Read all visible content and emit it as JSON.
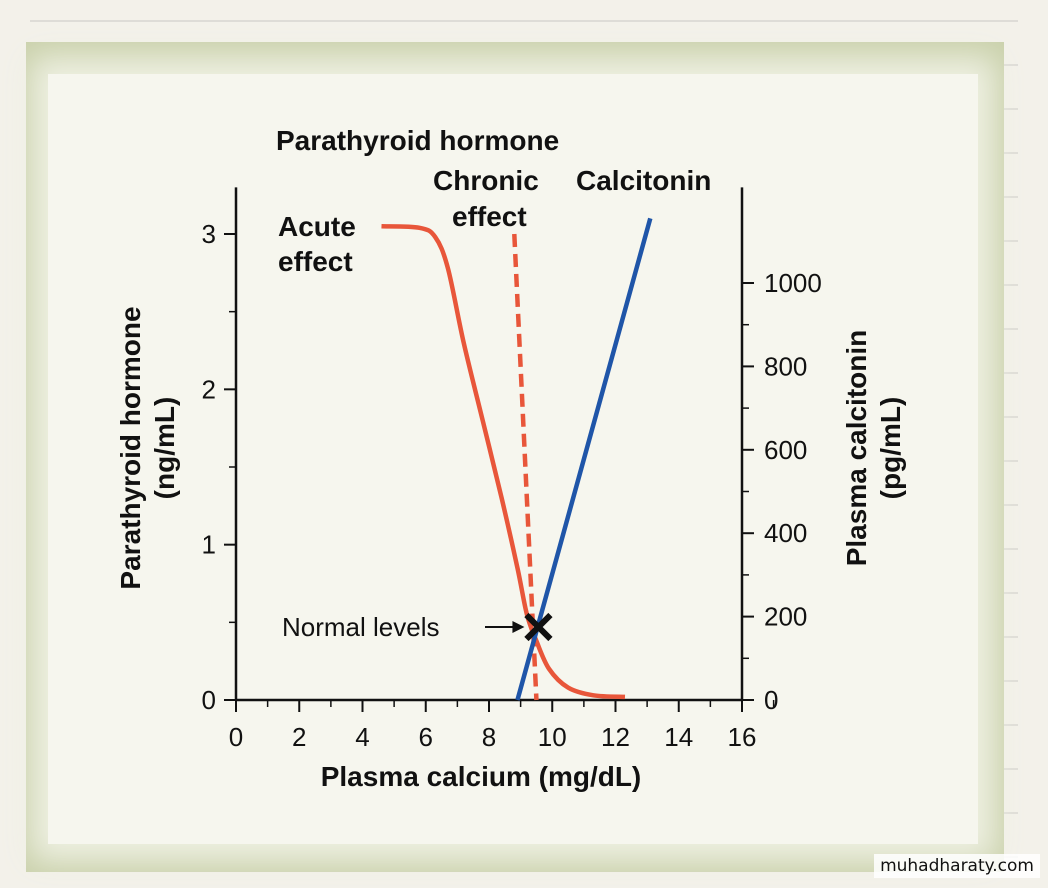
{
  "chart_data": {
    "type": "line",
    "title": "Parathyroid hormone",
    "xlabel": "Plasma calcium (mg/dL)",
    "ylabel_left": [
      "Parathyroid hormone",
      "(ng/mL)"
    ],
    "ylabel_right": [
      "Plasma calcitonin",
      "(pg/mL)"
    ],
    "xlim": [
      0,
      16
    ],
    "ylim_left": [
      0,
      3.3
    ],
    "ylim_right": [
      0,
      1190
    ],
    "x_ticks": [
      0,
      2,
      4,
      6,
      8,
      10,
      12,
      14,
      16
    ],
    "y_left_ticks": [
      0,
      1,
      2,
      3
    ],
    "y_right_ticks": [
      0,
      200,
      400,
      600,
      800,
      1000
    ],
    "grid": false,
    "series": [
      {
        "name": "Acute effect",
        "label_lines": [
          "Acute",
          "effect"
        ],
        "axis": "left",
        "style": "solid",
        "color": "#e8563a",
        "x": [
          4.6,
          5.8,
          6.3,
          6.7,
          7.2,
          7.8,
          8.4,
          8.9,
          9.2,
          9.5,
          9.9,
          10.5,
          11.3,
          12.3
        ],
        "y": [
          3.05,
          3.04,
          2.98,
          2.78,
          2.3,
          1.8,
          1.3,
          0.85,
          0.55,
          0.38,
          0.2,
          0.08,
          0.03,
          0.02
        ]
      },
      {
        "name": "Chronic effect",
        "label_lines": [
          "Chronic",
          "effect"
        ],
        "axis": "left",
        "style": "dashed",
        "color": "#e8563a",
        "x": [
          8.8,
          9.5
        ],
        "y": [
          3.0,
          0.0
        ]
      },
      {
        "name": "Calcitonin",
        "label_lines": [
          "Calcitonin"
        ],
        "axis": "right",
        "style": "solid",
        "color": "#1f55a8",
        "x": [
          8.9,
          13.1
        ],
        "y": [
          0,
          1155
        ]
      }
    ],
    "annotations": [
      {
        "text": "Normal levels",
        "x": 9.5,
        "y_left": 0.47,
        "marker": "x"
      }
    ]
  },
  "watermark": "muhadharaty.com"
}
